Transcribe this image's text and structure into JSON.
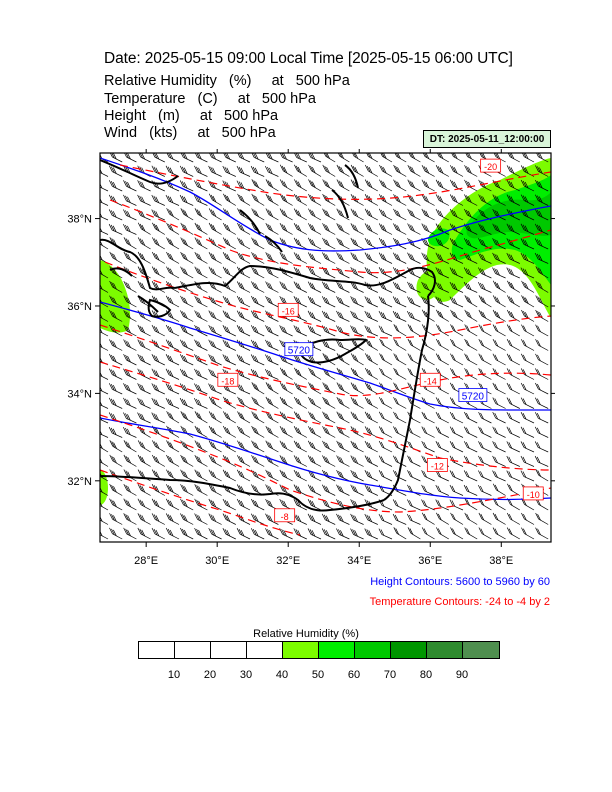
{
  "header": {
    "title": "Date: 2025-05-15  09:00 Local Time [2025-05-15  06:00 UTC]",
    "lines": [
      "Relative Humidity   (%)     at   500 hPa",
      "Temperature   (C)     at   500 hPa",
      "Height   (m)     at   500 hPa",
      "Wind   (kts)     at   500 hPa"
    ],
    "dt_badge": "DT: 2025-05-11_12:00:00"
  },
  "map": {
    "lon_range": [
      26.7,
      39.4
    ],
    "lat_range": [
      30.6,
      39.5
    ],
    "lon_ticks": [
      {
        "value": 28,
        "label": "28°E"
      },
      {
        "value": 30,
        "label": "30°E"
      },
      {
        "value": 32,
        "label": "32°E"
      },
      {
        "value": 34,
        "label": "34°E"
      },
      {
        "value": 36,
        "label": "36°E"
      },
      {
        "value": 38,
        "label": "38°E"
      }
    ],
    "lat_ticks": [
      {
        "value": 32,
        "label": "32°N"
      },
      {
        "value": 34,
        "label": "34°N"
      },
      {
        "value": 36,
        "label": "36°N"
      },
      {
        "value": 38,
        "label": "38°N"
      }
    ],
    "height_labels": [
      {
        "text": "5720",
        "lon": 32.3,
        "lat": 35.0
      },
      {
        "text": "5720",
        "lon": 37.2,
        "lat": 33.95
      }
    ],
    "temp_labels": [
      {
        "text": "-20",
        "lon": 37.7,
        "lat": 39.2
      },
      {
        "text": "-16",
        "lon": 32.0,
        "lat": 35.9
      },
      {
        "text": "-18",
        "lon": 30.3,
        "lat": 34.3
      },
      {
        "text": "-14",
        "lon": 36.0,
        "lat": 34.3
      },
      {
        "text": "-12",
        "lon": 36.2,
        "lat": 32.35
      },
      {
        "text": "-10",
        "lon": 38.9,
        "lat": 31.7
      },
      {
        "text": "-8",
        "lon": 31.9,
        "lat": 31.2
      }
    ],
    "colors": {
      "height": "#0000ff",
      "temperature": "#ff0000",
      "coast": "#000000",
      "barb": "#000000"
    }
  },
  "notes": {
    "height": "Height Contours: 5600 to 5960 by 60",
    "temperature": "Temperature Contours: -24 to -4 by 2"
  },
  "colorbar": {
    "title": "Relative Humidity  (%)",
    "colors": [
      "#ffffff",
      "#ffffff",
      "#ffffff",
      "#ffffff",
      "#7cfc00",
      "#00ee00",
      "#00c800",
      "#009600",
      "#2e8b2e",
      "#4f8f4f"
    ],
    "labels": [
      "10",
      "20",
      "30",
      "40",
      "50",
      "60",
      "70",
      "80",
      "90"
    ]
  }
}
